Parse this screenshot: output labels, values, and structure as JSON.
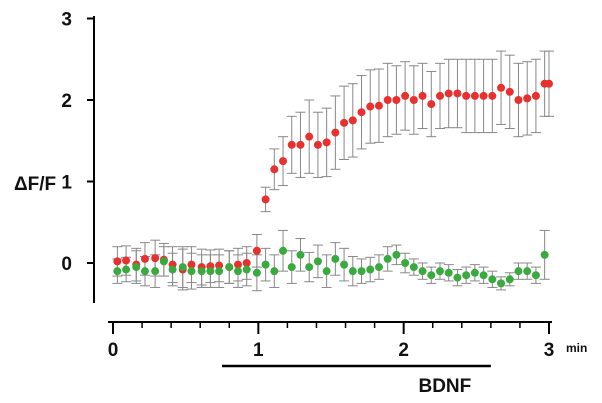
{
  "chart_data": {
    "type": "scatter",
    "ylabel": "ΔF/F",
    "xunit": "min",
    "xlim": [
      0,
      3
    ],
    "ylim": [
      -0.5,
      3
    ],
    "xticks": [
      "0",
      "1",
      "2",
      "3"
    ],
    "yticks": [
      "0",
      "1",
      "2",
      "3"
    ],
    "stimulus": {
      "label": "BDNF",
      "start": 0.75,
      "end": 2.6
    },
    "colors": {
      "series_a": "#e8312f",
      "series_b": "#3aaa3f",
      "error_bar": "#888888"
    },
    "grid": false,
    "series": [
      {
        "color": "#e8312f",
        "x": [
          0.03,
          0.09,
          0.16,
          0.22,
          0.29,
          0.35,
          0.41,
          0.48,
          0.54,
          0.61,
          0.67,
          0.73,
          0.8,
          0.86,
          0.92,
          0.99,
          1.05,
          1.11,
          1.17,
          1.23,
          1.29,
          1.35,
          1.41,
          1.47,
          1.53,
          1.59,
          1.65,
          1.71,
          1.77,
          1.83,
          1.89,
          1.95,
          2.01,
          2.07,
          2.13,
          2.19,
          2.25,
          2.31,
          2.37,
          2.43,
          2.49,
          2.55,
          2.61,
          2.67,
          2.73,
          2.79,
          2.85,
          2.91,
          2.97,
          3.0
        ],
        "y": [
          0.02,
          0.03,
          -0.02,
          0.05,
          0.06,
          0.04,
          -0.02,
          -0.08,
          -0.02,
          -0.05,
          -0.04,
          -0.03,
          -0.05,
          -0.02,
          0.0,
          0.15,
          0.78,
          1.15,
          1.25,
          1.45,
          1.45,
          1.55,
          1.45,
          1.48,
          1.6,
          1.72,
          1.75,
          1.85,
          1.92,
          1.93,
          2.0,
          2.0,
          2.05,
          2.0,
          2.05,
          1.95,
          2.05,
          2.08,
          2.08,
          2.05,
          2.05,
          2.05,
          2.05,
          2.15,
          2.1,
          2.0,
          2.02,
          2.05,
          2.2,
          2.2
        ],
        "err": [
          0.18,
          0.18,
          0.2,
          0.2,
          0.22,
          0.2,
          0.22,
          0.25,
          0.22,
          0.22,
          0.2,
          0.2,
          0.2,
          0.2,
          0.2,
          0.2,
          0.15,
          0.25,
          0.3,
          0.35,
          0.4,
          0.45,
          0.4,
          0.42,
          0.45,
          0.45,
          0.45,
          0.45,
          0.45,
          0.45,
          0.45,
          0.42,
          0.42,
          0.42,
          0.4,
          0.4,
          0.4,
          0.42,
          0.42,
          0.45,
          0.45,
          0.45,
          0.45,
          0.45,
          0.45,
          0.45,
          0.45,
          0.45,
          0.4,
          0.4
        ]
      },
      {
        "color": "#3aaa3f",
        "x": [
          0.03,
          0.09,
          0.16,
          0.22,
          0.29,
          0.35,
          0.41,
          0.48,
          0.54,
          0.61,
          0.67,
          0.73,
          0.8,
          0.86,
          0.92,
          0.99,
          1.05,
          1.11,
          1.17,
          1.23,
          1.29,
          1.35,
          1.41,
          1.47,
          1.53,
          1.59,
          1.65,
          1.71,
          1.77,
          1.83,
          1.89,
          1.95,
          2.01,
          2.07,
          2.13,
          2.19,
          2.25,
          2.31,
          2.37,
          2.43,
          2.49,
          2.55,
          2.61,
          2.67,
          2.73,
          2.79,
          2.85,
          2.91,
          2.97
        ],
        "y": [
          -0.1,
          -0.08,
          -0.05,
          -0.1,
          -0.1,
          0.02,
          -0.08,
          -0.05,
          -0.1,
          -0.1,
          -0.1,
          -0.1,
          -0.05,
          -0.1,
          -0.08,
          -0.12,
          -0.02,
          -0.1,
          0.15,
          -0.05,
          0.1,
          -0.05,
          0.02,
          -0.1,
          0.05,
          -0.02,
          -0.1,
          -0.1,
          -0.08,
          -0.05,
          0.05,
          0.1,
          0.0,
          -0.05,
          -0.1,
          -0.15,
          -0.1,
          -0.12,
          -0.18,
          -0.15,
          -0.12,
          -0.15,
          -0.2,
          -0.25,
          -0.2,
          -0.1,
          -0.1,
          -0.15,
          0.1
        ],
        "err": [
          0.15,
          0.15,
          0.2,
          0.18,
          0.2,
          0.18,
          0.2,
          0.25,
          0.22,
          0.2,
          0.2,
          0.2,
          0.2,
          0.2,
          0.2,
          0.22,
          0.2,
          0.2,
          0.25,
          0.2,
          0.2,
          0.18,
          0.2,
          0.2,
          0.2,
          0.2,
          0.18,
          0.15,
          0.15,
          0.15,
          0.15,
          0.12,
          0.12,
          0.1,
          0.1,
          0.1,
          0.1,
          0.1,
          0.1,
          0.1,
          0.1,
          0.1,
          0.1,
          0.08,
          0.08,
          0.1,
          0.1,
          0.1,
          0.3
        ]
      }
    ]
  }
}
